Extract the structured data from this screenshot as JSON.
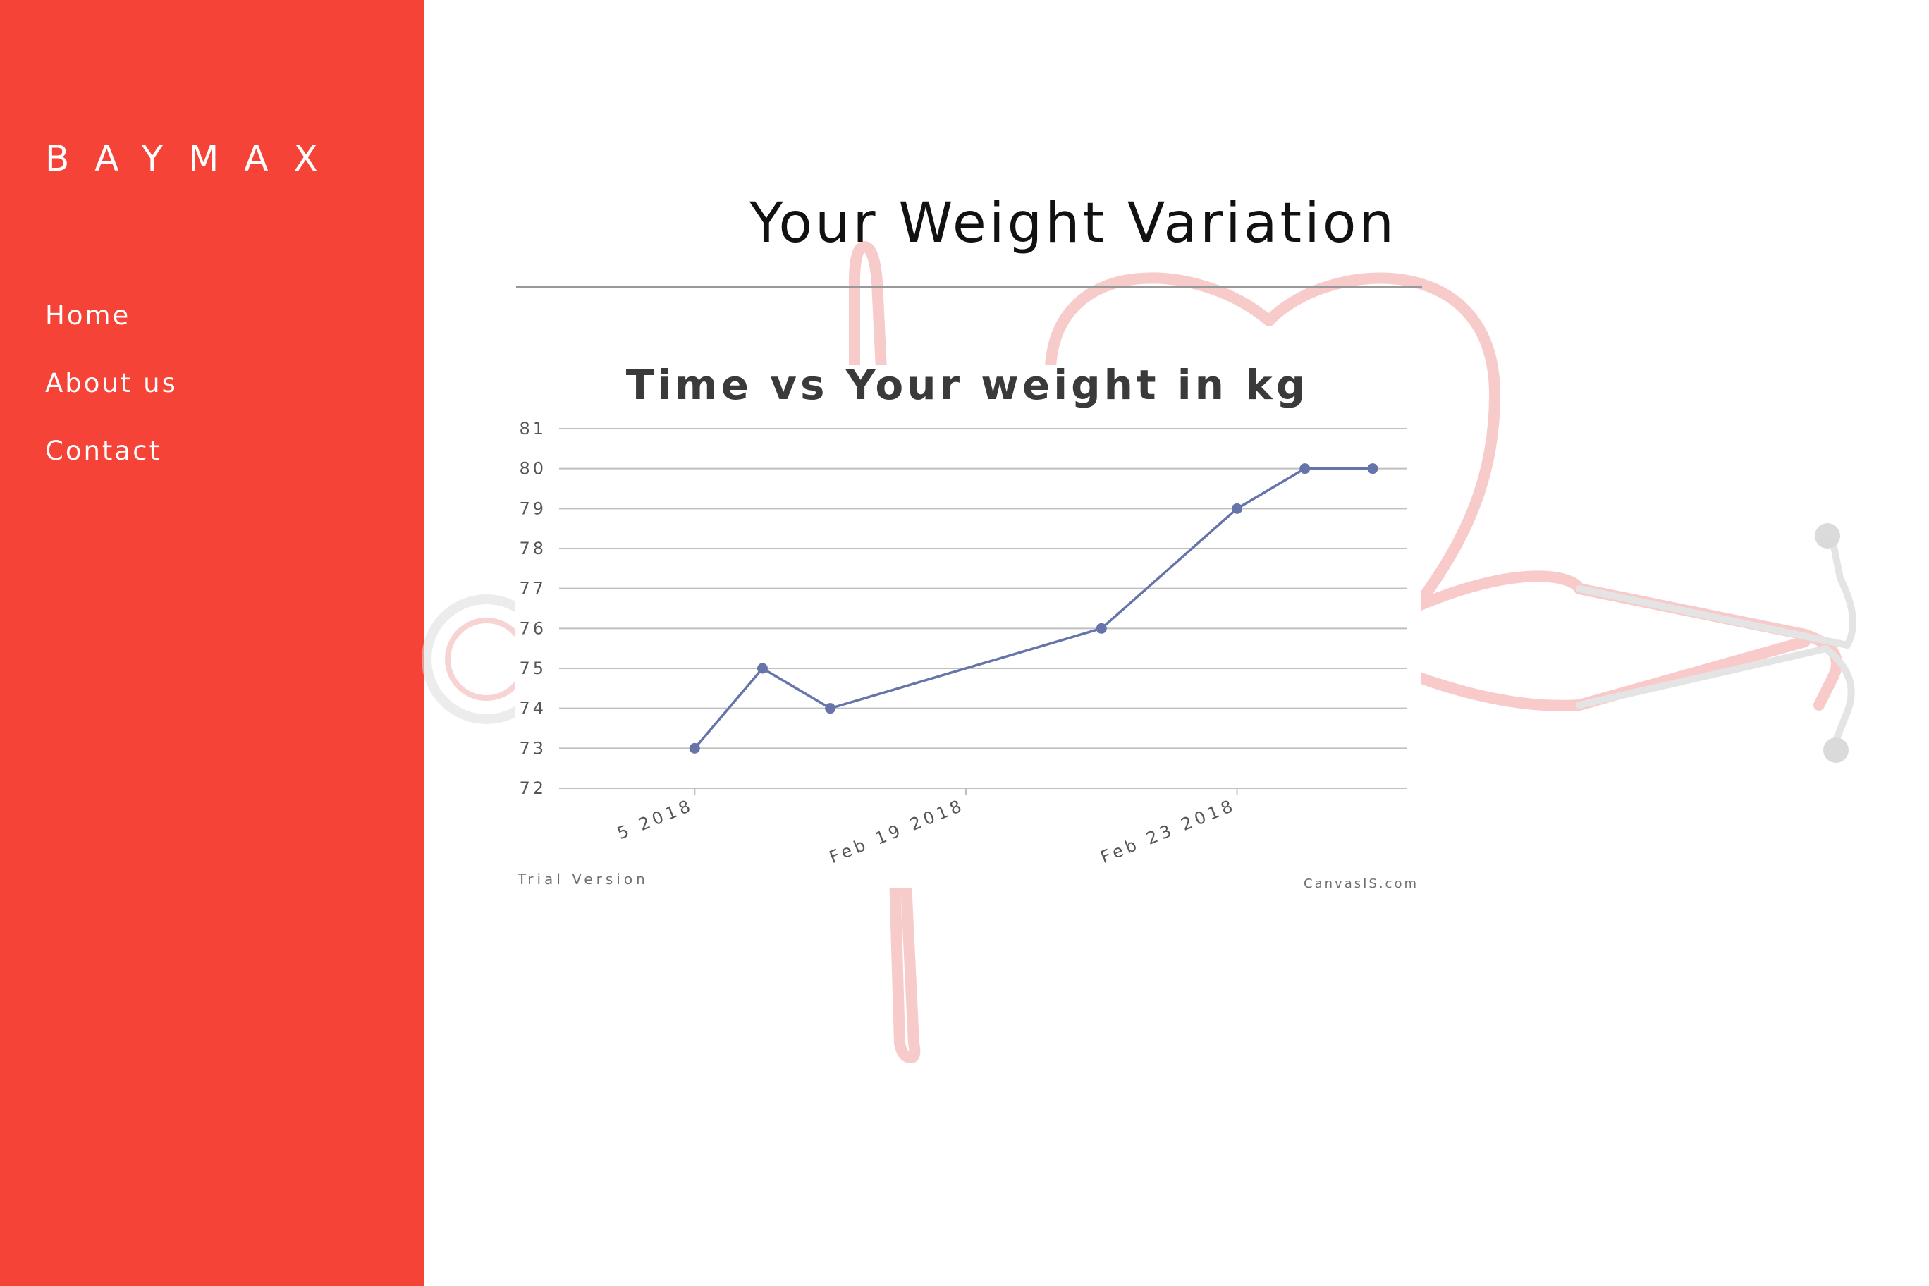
{
  "brand": "BAYMAX",
  "nav": {
    "items": [
      "Home",
      "About us",
      "Contact"
    ]
  },
  "page": {
    "title": "Your Weight Variation"
  },
  "colors": {
    "sidebar": "#f54337",
    "series": "#6674a9",
    "decoration": "#f3a3a3"
  },
  "decoration": {
    "icon": "stethoscope-heart-icon"
  },
  "chart_data": {
    "type": "line",
    "title": "Time vs Your weight in kg",
    "x_tick_labels": [
      "5 2018",
      "Feb 19 2018",
      "Feb 23 2018"
    ],
    "x": [
      "Feb 15 2018",
      "Feb 16 2018",
      "Feb 17 2018",
      "Feb 21 2018",
      "Feb 23 2018",
      "Feb 24 2018",
      "Feb 25 2018"
    ],
    "values": [
      73,
      75,
      74,
      76,
      79,
      80,
      80
    ],
    "ylim": [
      72,
      81
    ],
    "y_ticks": [
      72,
      73,
      74,
      75,
      76,
      77,
      78,
      79,
      80,
      81
    ],
    "grid": true,
    "legend": "none",
    "watermark_left": "Trial Version",
    "watermark_right": "CanvasJS.com"
  }
}
